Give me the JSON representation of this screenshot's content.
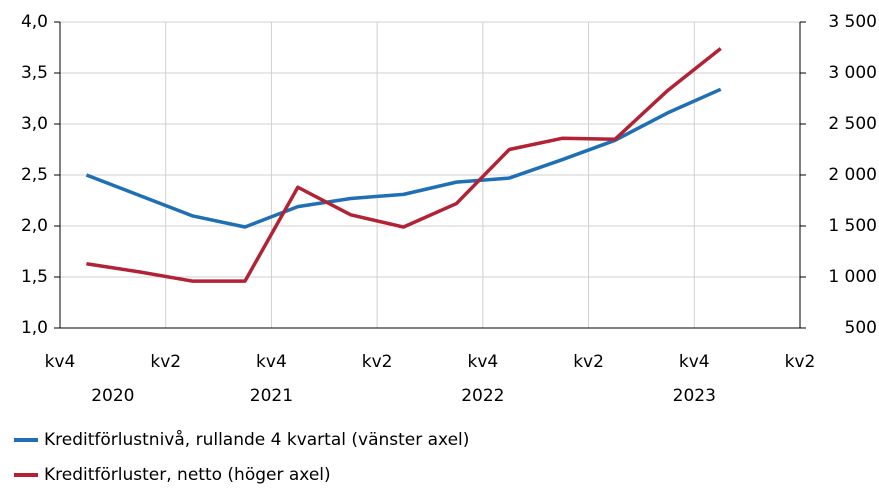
{
  "chart_data": {
    "type": "line",
    "x": [
      0.5,
      1.5,
      2.5,
      3.5,
      4.5,
      5.5,
      6.5,
      7.5,
      8.5,
      9.5,
      10.5,
      11.5,
      12.5
    ],
    "xlim": [
      0,
      14
    ],
    "xticks": [
      {
        "value": 0,
        "label": "kv4"
      },
      {
        "value": 2,
        "label": "kv2"
      },
      {
        "value": 4,
        "label": "kv4"
      },
      {
        "value": 6,
        "label": "kv2"
      },
      {
        "value": 8,
        "label": "kv4"
      },
      {
        "value": 10,
        "label": "kv2"
      },
      {
        "value": 12,
        "label": "kv4"
      },
      {
        "value": 14,
        "label": "kv2"
      }
    ],
    "year_labels": [
      {
        "value": 1,
        "label": "2020"
      },
      {
        "value": 4,
        "label": "2021"
      },
      {
        "value": 8,
        "label": "2022"
      },
      {
        "value": 12,
        "label": "2023"
      }
    ],
    "ylim": [
      1.0,
      4.0
    ],
    "yticks": [
      {
        "value": 1.0,
        "label": "1,0"
      },
      {
        "value": 1.5,
        "label": "1,5"
      },
      {
        "value": 2.0,
        "label": "2,0"
      },
      {
        "value": 2.5,
        "label": "2,5"
      },
      {
        "value": 3.0,
        "label": "3,0"
      },
      {
        "value": 3.5,
        "label": "3,5"
      },
      {
        "value": 4.0,
        "label": "4,0"
      }
    ],
    "y2lim": [
      500,
      3500
    ],
    "y2ticks": [
      500,
      {
        "value": 1000,
        "label": "1 000"
      },
      {
        "value": 1500,
        "label": "1 500"
      },
      {
        "value": 2000,
        "label": "2 000"
      },
      {
        "value": 2500,
        "label": "2 500"
      },
      {
        "value": 3000,
        "label": "3 000"
      },
      {
        "value": 3500,
        "label": "3 500"
      }
    ],
    "grid": true,
    "series": [
      {
        "name": "Kreditförlustnivå, rullande 4 kvartal (vänster axel)",
        "color": "#1f6fb4",
        "values": [
          2.5,
          2.3,
          2.1,
          1.99,
          2.19,
          2.27,
          2.31,
          2.43,
          2.47,
          2.65,
          2.84,
          3.11,
          3.34
        ]
      },
      {
        "name": "Kreditförluster, netto (höger axel)",
        "color": "#b22234",
        "axis": "y2",
        "values": [
          1130,
          1050,
          960,
          960,
          1880,
          1610,
          1490,
          1720,
          2250,
          2360,
          2350,
          2830,
          3240
        ]
      }
    ]
  }
}
